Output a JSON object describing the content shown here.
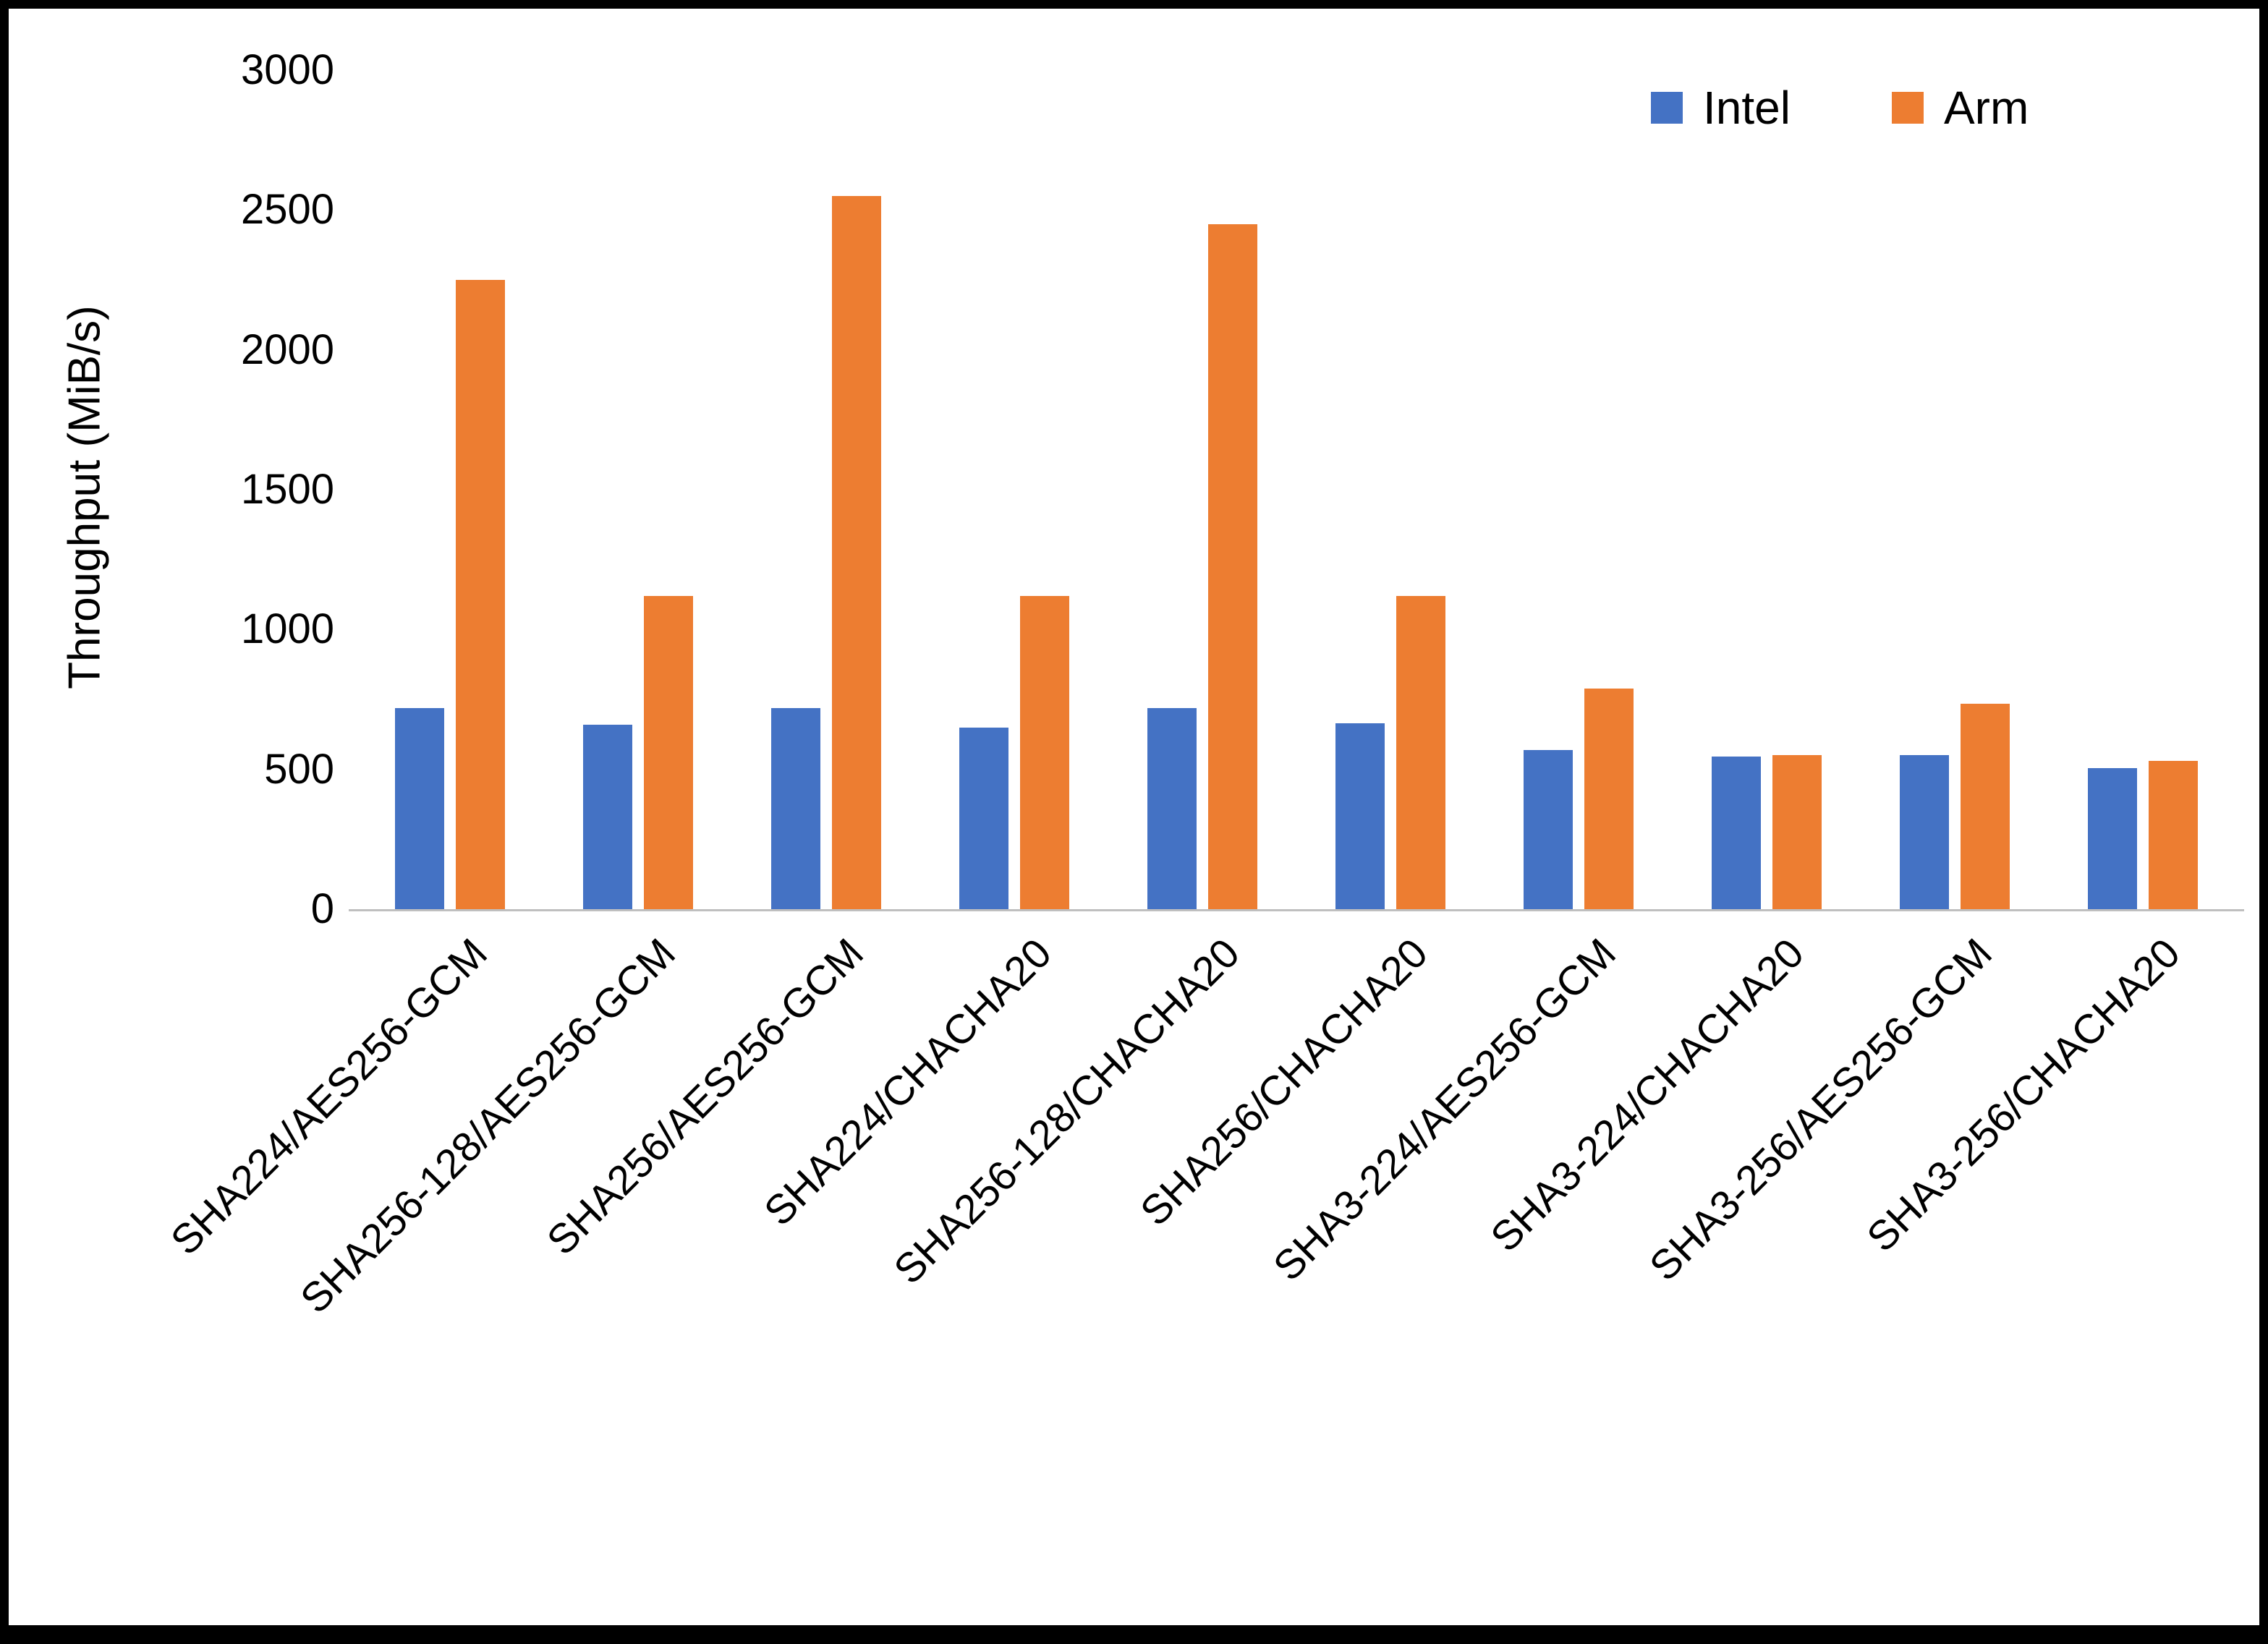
{
  "chart_data": {
    "type": "bar",
    "title": "",
    "xlabel": "",
    "ylabel": "Throughput (MiB/s)",
    "ylim": [
      0,
      3000
    ],
    "ytick_step": 500,
    "grid": false,
    "legend_position": "top-right",
    "categories": [
      "SHA224/AES256-GCM",
      "SHA256-128/AES256-GCM",
      "SHA256/AES256-GCM",
      "SHA224/CHACHA20",
      "SHA256-128/CHACHA20",
      "SHA256/CHACHA20",
      "SHA3-224/AES256-GCM",
      "SHA3-224/CHACHA20",
      "SHA3-256/AES256-GCM",
      "SHA3-256/CHACHA20"
    ],
    "series": [
      {
        "name": "Intel",
        "color": "#4472C4",
        "values": [
          720,
          660,
          720,
          650,
          720,
          665,
          570,
          545,
          550,
          505
        ]
      },
      {
        "name": "Arm",
        "color": "#ED7D31",
        "values": [
          2250,
          1120,
          2550,
          1120,
          2450,
          1120,
          790,
          550,
          735,
          530
        ]
      }
    ]
  }
}
